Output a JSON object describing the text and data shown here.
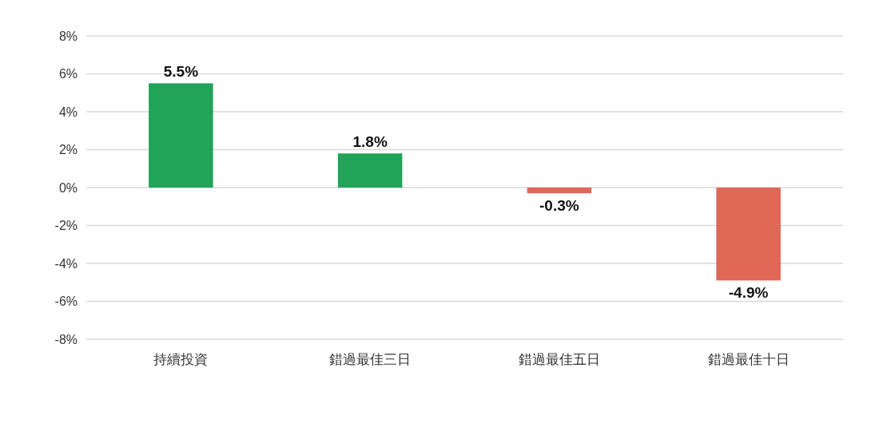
{
  "chart_data": {
    "type": "bar",
    "categories": [
      "持續投資",
      "錯過最佳三日",
      "錯過最佳五日",
      "錯過最佳十日"
    ],
    "values": [
      5.5,
      1.8,
      -0.3,
      -4.9
    ],
    "colors": [
      "#21a358",
      "#21a358",
      "#e06656",
      "#e06656"
    ],
    "value_labels": [
      "5.5%",
      "1.8%",
      "-0.3%",
      "-4.9%"
    ],
    "ylim": [
      -8,
      8
    ],
    "yticks": [
      {
        "value": -8,
        "label": "-8%"
      },
      {
        "value": -6,
        "label": "-6%"
      },
      {
        "value": -4,
        "label": "-4%"
      },
      {
        "value": -2,
        "label": "-2%"
      },
      {
        "value": 0,
        "label": "0%"
      },
      {
        "value": 2,
        "label": "2%"
      },
      {
        "value": 4,
        "label": "4%"
      },
      {
        "value": 6,
        "label": "6%"
      },
      {
        "value": 8,
        "label": "8%"
      }
    ],
    "grid": "y"
  }
}
